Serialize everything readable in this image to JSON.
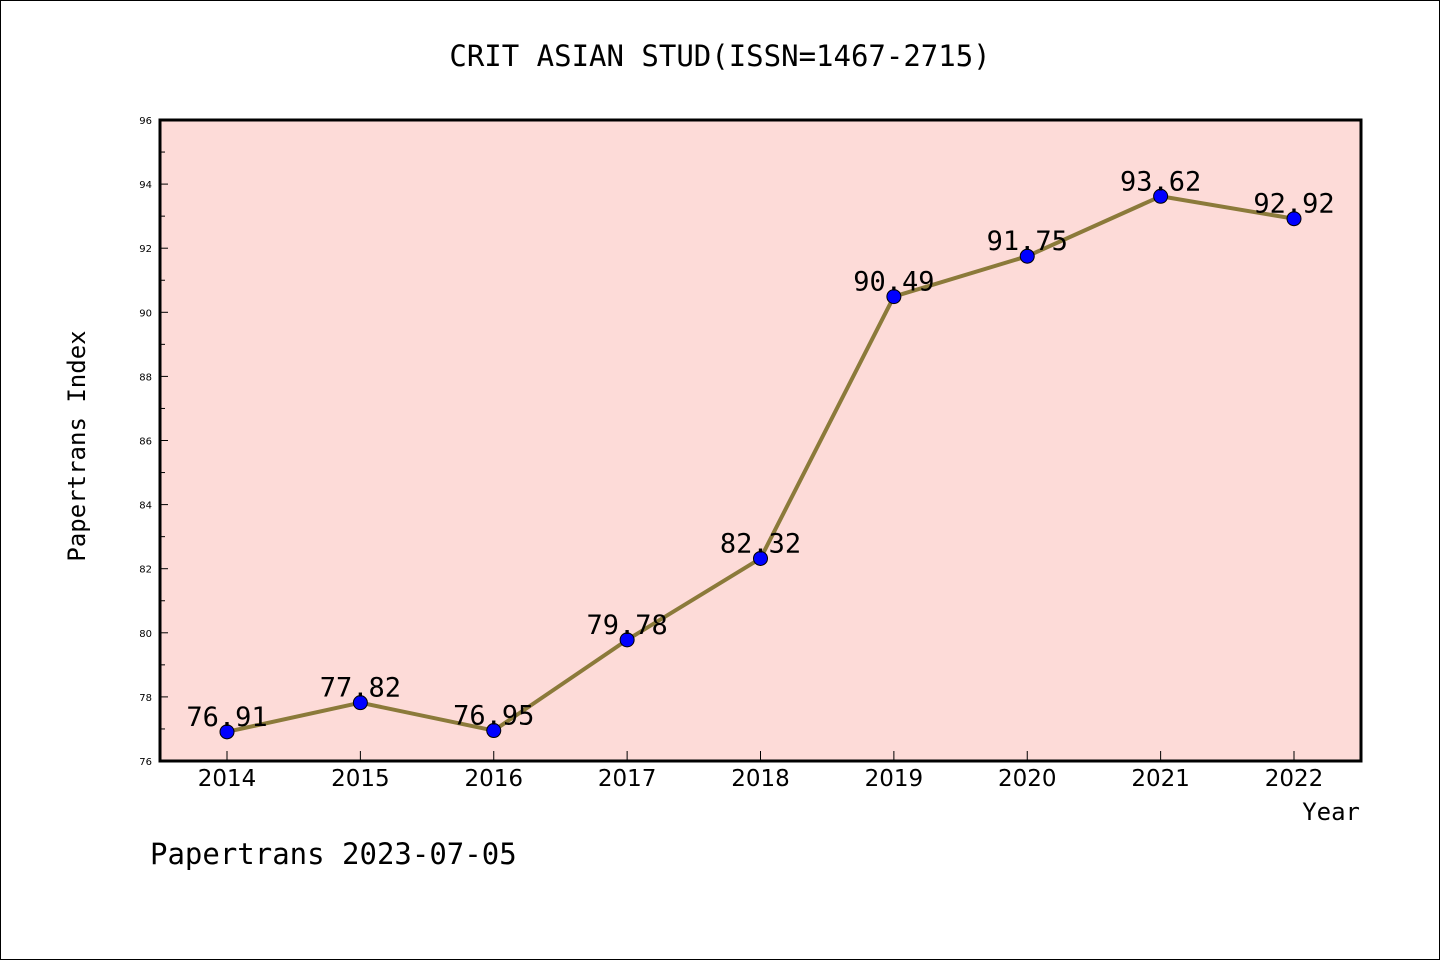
{
  "chart_data": {
    "type": "line",
    "title": "CRIT ASIAN STUD(ISSN=1467-2715)",
    "xlabel": "Year",
    "ylabel": "Papertrans Index",
    "categories": [
      "2014",
      "2015",
      "2016",
      "2017",
      "2018",
      "2019",
      "2020",
      "2021",
      "2022"
    ],
    "series": [
      {
        "values": [
          76.91,
          77.82,
          76.95,
          79.78,
          82.32,
          90.49,
          91.75,
          93.62,
          92.92
        ],
        "labels": [
          "76.91",
          "77.82",
          "76.95",
          "79.78",
          "82.32",
          "90.49",
          "91.75",
          "93.62",
          "92.92"
        ]
      }
    ],
    "ylim": [
      76,
      96
    ],
    "yticks": [
      "76",
      "78",
      "80",
      "82",
      "84",
      "86",
      "88",
      "90",
      "92",
      "94",
      "96"
    ],
    "grid": false,
    "colors": {
      "plot_background": "#fddbd8",
      "line": "#8b7a3a",
      "marker": "#0000ff"
    }
  },
  "footer": {
    "text": "Papertrans 2023-07-05"
  }
}
